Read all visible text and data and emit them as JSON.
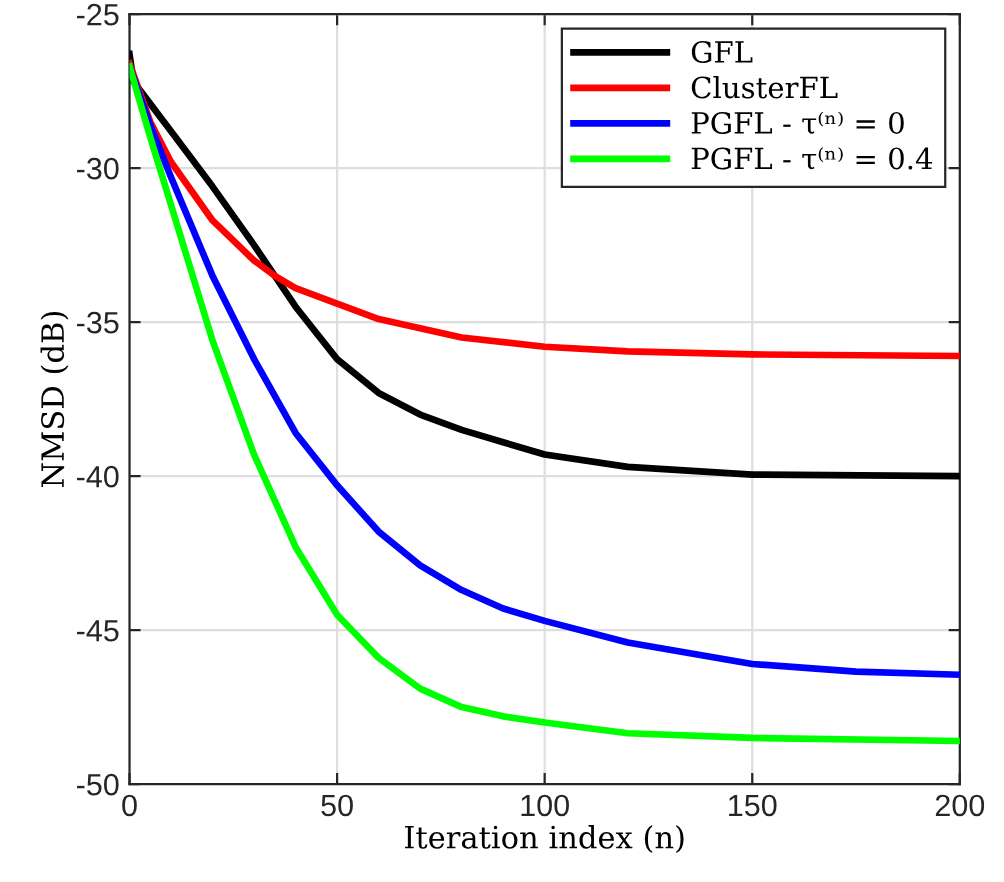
{
  "chart_data": {
    "type": "line",
    "xlabel": "Iteration index (n)",
    "ylabel": "NMSD (dB)",
    "xlim": [
      0,
      200
    ],
    "ylim": [
      -50,
      -25
    ],
    "xticks": [
      0,
      50,
      100,
      150,
      200
    ],
    "yticks": [
      -50,
      -45,
      -40,
      -35,
      -30,
      -25
    ],
    "grid": true,
    "legend": "top right",
    "line_style": "solid",
    "marker": "none",
    "series": [
      {
        "name": "GFL",
        "color": "#000000",
        "x": [
          0,
          1,
          10,
          20,
          30,
          35,
          40,
          50,
          60,
          70,
          80,
          90,
          100,
          120,
          150,
          200
        ],
        "values": [
          -26.3,
          -27.2,
          -28.8,
          -30.6,
          -32.5,
          -33.5,
          -34.5,
          -36.2,
          -37.3,
          -38.0,
          -38.5,
          -38.9,
          -39.3,
          -39.7,
          -39.95,
          -40.0
        ]
      },
      {
        "name": "ClusterFL",
        "color": "#ff0000",
        "x": [
          0,
          5,
          10,
          20,
          30,
          35,
          40,
          50,
          60,
          80,
          100,
          120,
          150,
          200
        ],
        "values": [
          -26.6,
          -28.5,
          -29.8,
          -31.7,
          -33.0,
          -33.5,
          -33.9,
          -34.4,
          -34.9,
          -35.5,
          -35.8,
          -35.95,
          -36.05,
          -36.1
        ]
      },
      {
        "name": "PGFL - τ⁽ⁿ⁾ = 0",
        "color": "#0000ff",
        "x": [
          0,
          5,
          10,
          20,
          30,
          40,
          50,
          60,
          70,
          80,
          90,
          100,
          120,
          150,
          175,
          200
        ],
        "values": [
          -26.7,
          -28.6,
          -30.3,
          -33.5,
          -36.2,
          -38.6,
          -40.3,
          -41.8,
          -42.9,
          -43.7,
          -44.3,
          -44.7,
          -45.4,
          -46.1,
          -46.35,
          -46.45
        ]
      },
      {
        "name": "PGFL - τ⁽ⁿ⁾ = 0.4",
        "color": "#00ff00",
        "x": [
          0,
          5,
          10,
          20,
          30,
          40,
          50,
          60,
          70,
          80,
          90,
          100,
          120,
          150,
          200
        ],
        "values": [
          -26.7,
          -29.0,
          -31.2,
          -35.6,
          -39.3,
          -42.3,
          -44.5,
          -45.9,
          -46.9,
          -47.5,
          -47.8,
          -48.0,
          -48.35,
          -48.5,
          -48.6
        ]
      }
    ]
  }
}
